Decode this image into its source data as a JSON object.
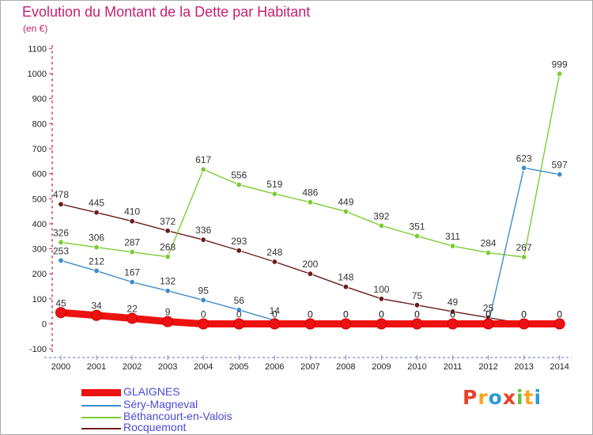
{
  "title": "Evolution du Montant de la Dette par Habitant",
  "unit_label": "(en €)",
  "brand": {
    "letters": [
      "P",
      "r",
      "o",
      "x",
      "i",
      "t",
      "i"
    ],
    "colors": [
      "#e8402b",
      "#f7a51c",
      "#2d9ad6",
      "#e8402b",
      "#6cbe45",
      "#f7a51c",
      "#2d9ad6"
    ]
  },
  "chart_data": {
    "type": "line",
    "x": [
      "2000",
      "2001",
      "2002",
      "2003",
      "2004",
      "2005",
      "2006",
      "2007",
      "2008",
      "2009",
      "2010",
      "2011",
      "2012",
      "2013",
      "2014"
    ],
    "ylim": [
      -100,
      1100
    ],
    "yticks": [
      "-100",
      "0",
      "100",
      "200",
      "300",
      "400",
      "500",
      "600",
      "700",
      "800",
      "900",
      "1000",
      "1100"
    ],
    "grid": false,
    "legend_position": "bottom-left",
    "series": [
      {
        "name": "Rocquemont",
        "color": "#6b1c1c",
        "values": [
          478,
          445,
          410,
          372,
          336,
          293,
          248,
          200,
          148,
          100,
          75,
          49,
          25,
          0,
          0
        ],
        "labels": [
          "478",
          "445",
          "410",
          "372",
          "336",
          "293",
          "248",
          "200",
          "148",
          "100",
          "75",
          "49",
          "25",
          "0",
          "0"
        ]
      },
      {
        "name": "Béthancourt-en-Valois",
        "color": "#7ccc33",
        "values": [
          326,
          306,
          287,
          268,
          617,
          556,
          519,
          486,
          449,
          392,
          351,
          311,
          284,
          267,
          999
        ],
        "labels": [
          "326",
          "306",
          "287",
          "268",
          "617",
          "556",
          "519",
          "486",
          "449",
          "392",
          "351",
          "311",
          "284",
          "267",
          "999"
        ]
      },
      {
        "name": "Séry-Magneval",
        "color": "#3c8ccc",
        "values": [
          253,
          212,
          167,
          132,
          95,
          56,
          14,
          0,
          0,
          0,
          0,
          0,
          0,
          623,
          597
        ],
        "labels": [
          "253",
          "212",
          "167",
          "132",
          "95",
          "56",
          "14",
          "0",
          "0",
          "0",
          "0",
          "0",
          "0",
          "623",
          "597"
        ]
      },
      {
        "name": "GLAIGNES",
        "color": "#ee1111",
        "values": [
          45,
          34,
          22,
          9,
          0,
          0,
          0,
          0,
          0,
          0,
          0,
          0,
          0,
          0,
          0
        ],
        "labels": [
          "45",
          "34",
          "22",
          "9",
          "0",
          "0",
          "0",
          "0",
          "0",
          "0",
          "0",
          "0",
          "0",
          "0",
          "0"
        ]
      }
    ]
  }
}
